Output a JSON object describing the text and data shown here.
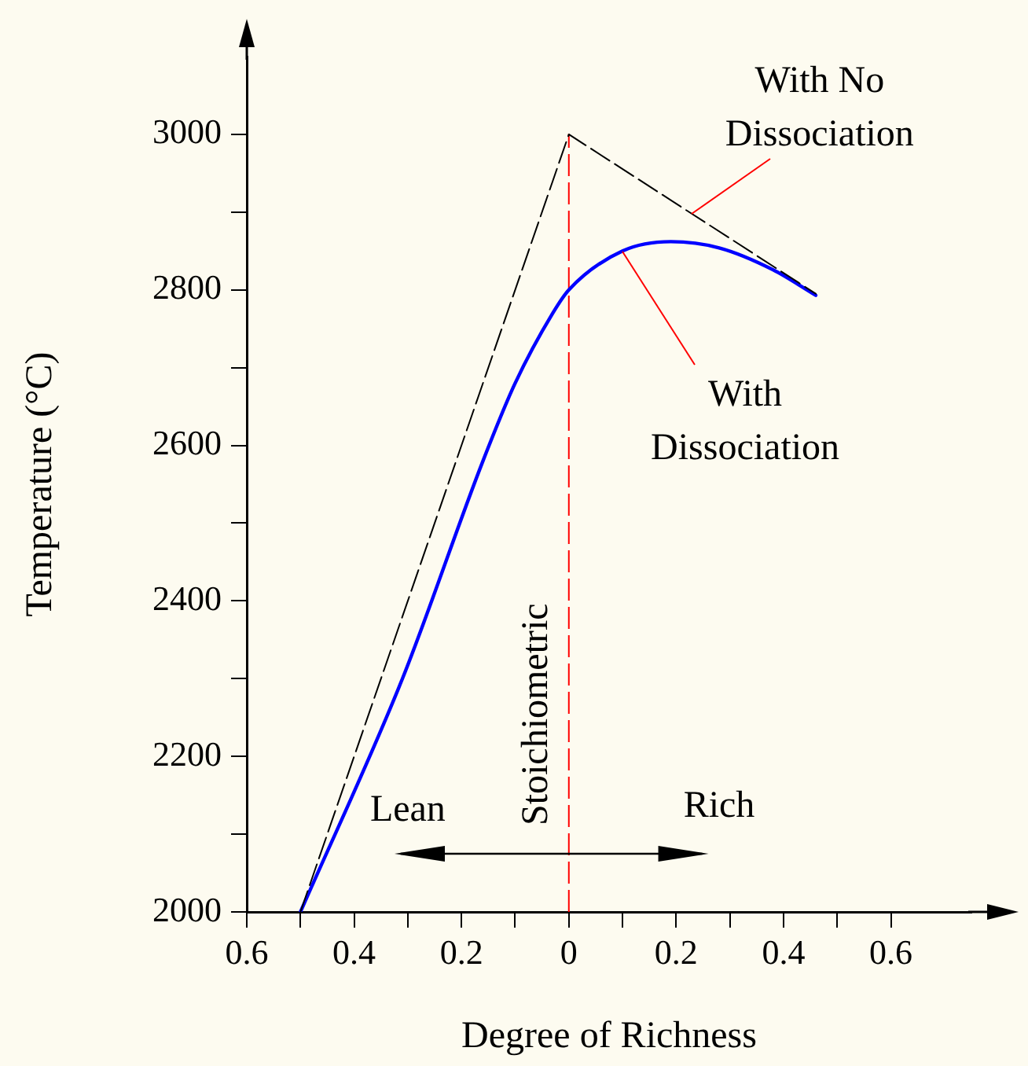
{
  "chart_data": {
    "type": "line",
    "xlabel": "Degree of Richness",
    "ylabel": "Temperature (°C)",
    "series": [
      {
        "name": "With No Dissociation",
        "color": "#000000",
        "line_style": "dashed",
        "x": [
          -0.5,
          0,
          0.46
        ],
        "values": [
          2000,
          3000,
          2795
        ]
      },
      {
        "name": "With Dissociation",
        "color": "#0000ff",
        "line_style": "solid",
        "x": [
          -0.5,
          -0.31,
          -0.16,
          -0.1,
          -0.03,
          0,
          0.1,
          0.19,
          0.28,
          0.38,
          0.46
        ],
        "values": [
          2000,
          2300,
          2580,
          2680,
          2770,
          2800,
          2850,
          2862,
          2854,
          2826,
          2793
        ]
      }
    ],
    "xlim": [
      -0.6,
      0.75
    ],
    "ylim": [
      2000,
      3100
    ],
    "xticks": [
      {
        "value": -0.6,
        "label": "0.6"
      },
      {
        "value": -0.5,
        "label": null
      },
      {
        "value": -0.4,
        "label": "0.4"
      },
      {
        "value": -0.3,
        "label": null
      },
      {
        "value": -0.2,
        "label": "0.2"
      },
      {
        "value": -0.1,
        "label": null
      },
      0,
      {
        "value": 0.1,
        "label": null
      },
      0.2,
      {
        "value": 0.3,
        "label": null
      },
      0.4,
      {
        "value": 0.5,
        "label": null
      },
      0.6
    ],
    "yticks": [
      2000,
      {
        "value": 2100,
        "label": null
      },
      2200,
      {
        "value": 2300,
        "label": null
      },
      2400,
      {
        "value": 2500,
        "label": null
      },
      2600,
      {
        "value": 2700,
        "label": null
      },
      2800,
      {
        "value": 2900,
        "label": null
      },
      3000
    ],
    "ref_lines": [
      {
        "axis": "x",
        "value": 0,
        "label": "Stoichiometric",
        "color": "#ff0000",
        "line_style": "dashed"
      }
    ],
    "annotations": [
      "Lean",
      "Rich"
    ],
    "grid": false,
    "legend": false,
    "marker": "none"
  }
}
